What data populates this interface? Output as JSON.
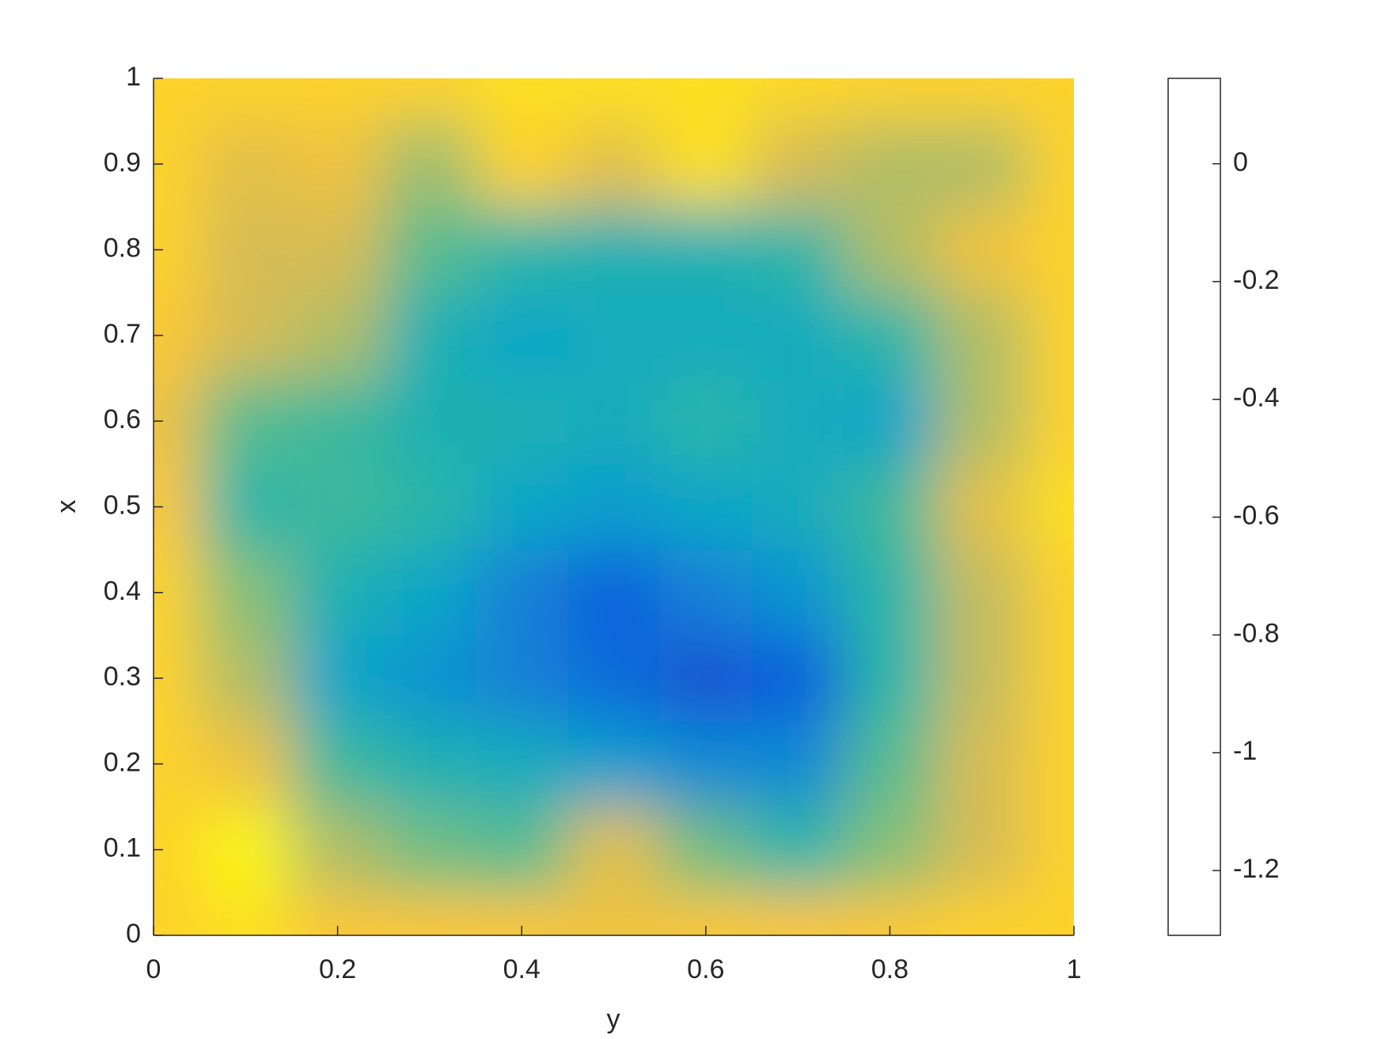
{
  "chart_data": {
    "type": "heatmap",
    "x_label": "y",
    "y_label": "x",
    "columns": [
      0,
      0.1,
      0.2,
      0.3,
      0.4,
      0.5,
      0.6,
      0.7,
      0.8,
      0.9,
      1
    ],
    "rows": [
      0,
      0.1,
      0.2,
      0.3,
      0.4,
      0.5,
      0.6,
      0.7,
      0.8,
      0.9,
      1
    ],
    "values": [
      [
        0,
        0.05,
        -0.05,
        -0.05,
        -0.05,
        -0.1,
        -0.05,
        -0.05,
        -0.05,
        0,
        0
      ],
      [
        0,
        0.12,
        -0.3,
        -0.45,
        -0.5,
        -0.15,
        -0.45,
        -0.6,
        -0.4,
        -0.2,
        0
      ],
      [
        0,
        -0.1,
        -0.55,
        -0.65,
        -0.7,
        -0.8,
        -0.9,
        -0.9,
        -0.5,
        -0.2,
        0
      ],
      [
        0,
        -0.3,
        -0.75,
        -0.85,
        -0.95,
        -1.05,
        -1.15,
        -1.1,
        -0.6,
        -0.25,
        0
      ],
      [
        0,
        -0.4,
        -0.65,
        -0.75,
        -0.95,
        -1.1,
        -0.95,
        -0.85,
        -0.6,
        -0.25,
        0
      ],
      [
        -0.05,
        -0.6,
        -0.55,
        -0.6,
        -0.75,
        -0.8,
        -0.75,
        -0.7,
        -0.55,
        -0.15,
        0.05
      ],
      [
        -0.1,
        -0.5,
        -0.55,
        -0.65,
        -0.65,
        -0.7,
        -0.6,
        -0.7,
        -0.75,
        -0.3,
        0
      ],
      [
        -0.05,
        -0.2,
        -0.3,
        -0.65,
        -0.75,
        -0.7,
        -0.7,
        -0.7,
        -0.6,
        -0.3,
        0
      ],
      [
        0,
        -0.2,
        -0.2,
        -0.5,
        -0.6,
        -0.65,
        -0.65,
        -0.6,
        -0.3,
        -0.1,
        0
      ],
      [
        0,
        -0.15,
        -0.1,
        -0.35,
        0,
        -0.15,
        0.05,
        -0.2,
        -0.3,
        -0.3,
        0
      ],
      [
        0,
        0,
        0,
        0,
        0.05,
        0.05,
        0.05,
        0.02,
        0,
        0,
        0
      ]
    ],
    "xlim": [
      0,
      1
    ],
    "xticks": [
      0,
      0.2,
      0.4,
      0.6,
      0.8,
      1
    ],
    "ylim": [
      0,
      1
    ],
    "yticks": [
      0,
      0.1,
      0.2,
      0.3,
      0.4,
      0.5,
      0.6,
      0.7,
      0.8,
      0.9,
      1
    ],
    "clim": [
      -1.31,
      0.145
    ],
    "cticks": [
      -1.2,
      -1,
      -0.8,
      -0.6,
      -0.4,
      -0.2,
      0
    ],
    "colormap": [
      "#352a87",
      "#0f5cdd",
      "#1481d6",
      "#06a4ca",
      "#2eb7a4",
      "#87bf77",
      "#d1bb59",
      "#fec832",
      "#f9fb0e"
    ]
  }
}
